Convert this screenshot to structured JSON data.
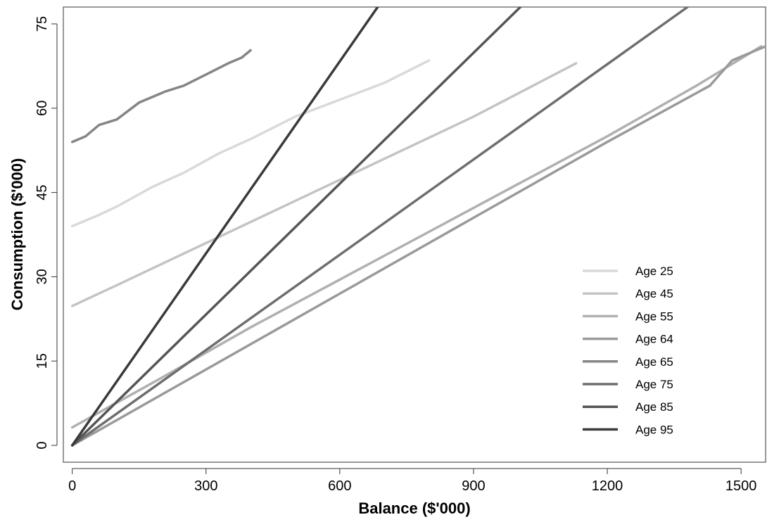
{
  "chart_data": {
    "type": "line",
    "title": "",
    "xlabel": "Balance ($'000)",
    "ylabel": "Consumption ($'000)",
    "xlim": [
      -20,
      1555
    ],
    "ylim": [
      -3,
      78
    ],
    "x_ticks": [
      0,
      300,
      600,
      900,
      1200,
      1500
    ],
    "y_ticks": [
      0,
      15,
      30,
      45,
      60,
      75
    ],
    "grid": false,
    "legend_position": "bottom-right",
    "series": [
      {
        "name": "Age 25",
        "color": "#d9d9d9",
        "points": [
          [
            0,
            39
          ],
          [
            60,
            41
          ],
          [
            100,
            42.5
          ],
          [
            180,
            46
          ],
          [
            250,
            48.5
          ],
          [
            330,
            52
          ],
          [
            400,
            54.5
          ],
          [
            500,
            58.5
          ],
          [
            600,
            61.5
          ],
          [
            700,
            64.5
          ],
          [
            800,
            68.5
          ]
        ]
      },
      {
        "name": "Age 45",
        "color": "#c4c4c4",
        "points": [
          [
            0,
            24.8
          ],
          [
            100,
            28.5
          ],
          [
            300,
            36
          ],
          [
            500,
            43.5
          ],
          [
            700,
            51
          ],
          [
            900,
            58.5
          ],
          [
            1130,
            68
          ]
        ]
      },
      {
        "name": "Age 55",
        "color": "#b0b0b0",
        "points": [
          [
            0,
            3.2
          ],
          [
            200,
            12
          ],
          [
            400,
            21
          ],
          [
            600,
            29.5
          ],
          [
            800,
            38
          ],
          [
            1000,
            46.5
          ],
          [
            1200,
            55
          ],
          [
            1400,
            64
          ],
          [
            1545,
            71
          ]
        ]
      },
      {
        "name": "Age 64",
        "color": "#9a9a9a",
        "points": [
          [
            0,
            0
          ],
          [
            300,
            13.5
          ],
          [
            600,
            27
          ],
          [
            900,
            40.5
          ],
          [
            1200,
            54
          ],
          [
            1430,
            64
          ],
          [
            1480,
            68.5
          ],
          [
            1555,
            71
          ]
        ]
      },
      {
        "name": "Age 65",
        "color": "#858585",
        "points": [
          [
            0,
            54
          ],
          [
            30,
            55
          ],
          [
            60,
            57
          ],
          [
            100,
            58
          ],
          [
            150,
            61
          ],
          [
            210,
            63
          ],
          [
            250,
            64
          ],
          [
            300,
            66
          ],
          [
            350,
            68
          ],
          [
            380,
            69
          ],
          [
            400,
            70.3
          ]
        ]
      },
      {
        "name": "Age 75",
        "color": "#6e6e6e",
        "points": [
          [
            0,
            0
          ],
          [
            1380,
            78
          ]
        ]
      },
      {
        "name": "Age 85",
        "color": "#555555",
        "points": [
          [
            0,
            0
          ],
          [
            1005,
            78
          ]
        ]
      },
      {
        "name": "Age 95",
        "color": "#3a3a3a",
        "points": [
          [
            0,
            0
          ],
          [
            685,
            78
          ]
        ]
      }
    ]
  }
}
